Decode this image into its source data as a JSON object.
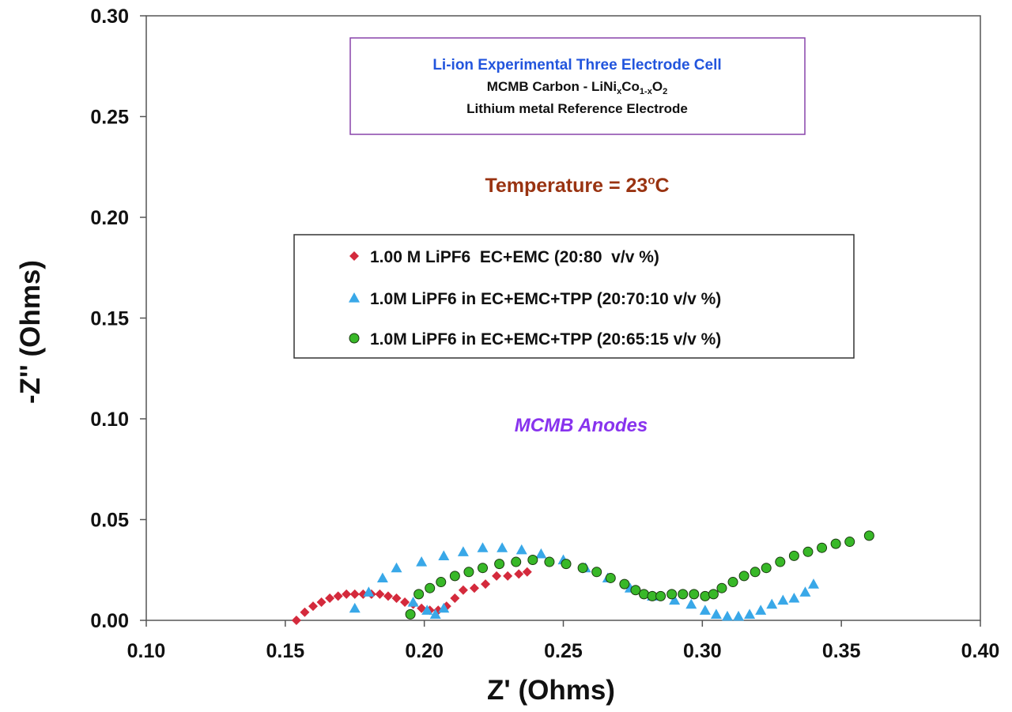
{
  "chart_data": {
    "type": "scatter",
    "title": "",
    "xlabel": "Z' (Ohms)",
    "ylabel": "-Z'' (Ohms)",
    "xlim": [
      0.1,
      0.4
    ],
    "ylim": [
      0.0,
      0.3
    ],
    "xticks": [
      "0.10",
      "0.15",
      "0.20",
      "0.25",
      "0.30",
      "0.35",
      "0.40"
    ],
    "yticks": [
      "0.00",
      "0.05",
      "0.10",
      "0.15",
      "0.20",
      "0.25",
      "0.30"
    ],
    "grid": false,
    "legend_position": "center",
    "info_box": {
      "line1": "Li-ion Experimental Three Electrode Cell",
      "line2": "MCMB Carbon - LiNi",
      "sub_x": "x",
      "co": "Co",
      "sub_1x": "1-x",
      "o": "O",
      "sub_2": "2",
      "line3": "Lithium metal Reference Electrode"
    },
    "temperature": {
      "label": "Temperature = 23",
      "sup": "o",
      "unit": "C"
    },
    "annotation": "MCMB Anodes",
    "colors": {
      "info_title": "#2255dd",
      "info_border": "#8844aa",
      "temperature": "#993311",
      "annotation": "#8833ee"
    },
    "series": [
      {
        "name": "1.00 M LiPF6  EC+EMC (20:80  v/v %)",
        "marker": "diamond",
        "color": "#d42a3c",
        "points": [
          [
            0.154,
            0.0
          ],
          [
            0.157,
            0.004
          ],
          [
            0.16,
            0.007
          ],
          [
            0.163,
            0.009
          ],
          [
            0.166,
            0.011
          ],
          [
            0.169,
            0.012
          ],
          [
            0.172,
            0.013
          ],
          [
            0.175,
            0.013
          ],
          [
            0.178,
            0.013
          ],
          [
            0.181,
            0.013
          ],
          [
            0.184,
            0.013
          ],
          [
            0.187,
            0.012
          ],
          [
            0.19,
            0.011
          ],
          [
            0.193,
            0.009
          ],
          [
            0.196,
            0.008
          ],
          [
            0.199,
            0.006
          ],
          [
            0.202,
            0.005
          ],
          [
            0.205,
            0.005
          ],
          [
            0.208,
            0.007
          ],
          [
            0.211,
            0.011
          ],
          [
            0.214,
            0.015
          ],
          [
            0.218,
            0.016
          ],
          [
            0.222,
            0.018
          ],
          [
            0.226,
            0.022
          ],
          [
            0.23,
            0.022
          ],
          [
            0.234,
            0.023
          ],
          [
            0.237,
            0.024
          ]
        ]
      },
      {
        "name": "1.0M LiPF6 in EC+EMC+TPP (20:70:10 v/v %)",
        "marker": "triangle",
        "color": "#39a8e8",
        "points": [
          [
            0.175,
            0.006
          ],
          [
            0.18,
            0.014
          ],
          [
            0.185,
            0.021
          ],
          [
            0.19,
            0.026
          ],
          [
            0.199,
            0.029
          ],
          [
            0.207,
            0.032
          ],
          [
            0.214,
            0.034
          ],
          [
            0.221,
            0.036
          ],
          [
            0.228,
            0.036
          ],
          [
            0.235,
            0.035
          ],
          [
            0.242,
            0.033
          ],
          [
            0.25,
            0.03
          ],
          [
            0.258,
            0.026
          ],
          [
            0.266,
            0.021
          ],
          [
            0.274,
            0.016
          ],
          [
            0.282,
            0.012
          ],
          [
            0.29,
            0.01
          ],
          [
            0.296,
            0.008
          ],
          [
            0.301,
            0.005
          ],
          [
            0.305,
            0.003
          ],
          [
            0.309,
            0.002
          ],
          [
            0.313,
            0.002
          ],
          [
            0.317,
            0.003
          ],
          [
            0.321,
            0.005
          ],
          [
            0.325,
            0.008
          ],
          [
            0.329,
            0.01
          ],
          [
            0.333,
            0.011
          ],
          [
            0.337,
            0.014
          ],
          [
            0.34,
            0.018
          ],
          [
            0.196,
            0.009
          ],
          [
            0.201,
            0.005
          ],
          [
            0.204,
            0.003
          ],
          [
            0.207,
            0.006
          ]
        ]
      },
      {
        "name": "1.0M LiPF6 in EC+EMC+TPP (20:65:15 v/v %)",
        "marker": "circle",
        "color": "#38b828",
        "points": [
          [
            0.195,
            0.003
          ],
          [
            0.198,
            0.013
          ],
          [
            0.202,
            0.016
          ],
          [
            0.206,
            0.019
          ],
          [
            0.211,
            0.022
          ],
          [
            0.216,
            0.024
          ],
          [
            0.221,
            0.026
          ],
          [
            0.227,
            0.028
          ],
          [
            0.233,
            0.029
          ],
          [
            0.239,
            0.03
          ],
          [
            0.245,
            0.029
          ],
          [
            0.251,
            0.028
          ],
          [
            0.257,
            0.026
          ],
          [
            0.262,
            0.024
          ],
          [
            0.267,
            0.021
          ],
          [
            0.272,
            0.018
          ],
          [
            0.276,
            0.015
          ],
          [
            0.279,
            0.013
          ],
          [
            0.282,
            0.012
          ],
          [
            0.285,
            0.012
          ],
          [
            0.289,
            0.013
          ],
          [
            0.293,
            0.013
          ],
          [
            0.297,
            0.013
          ],
          [
            0.301,
            0.012
          ],
          [
            0.304,
            0.013
          ],
          [
            0.307,
            0.016
          ],
          [
            0.311,
            0.019
          ],
          [
            0.315,
            0.022
          ],
          [
            0.319,
            0.024
          ],
          [
            0.323,
            0.026
          ],
          [
            0.328,
            0.029
          ],
          [
            0.333,
            0.032
          ],
          [
            0.338,
            0.034
          ],
          [
            0.343,
            0.036
          ],
          [
            0.348,
            0.038
          ],
          [
            0.353,
            0.039
          ],
          [
            0.36,
            0.042
          ]
        ]
      }
    ]
  }
}
